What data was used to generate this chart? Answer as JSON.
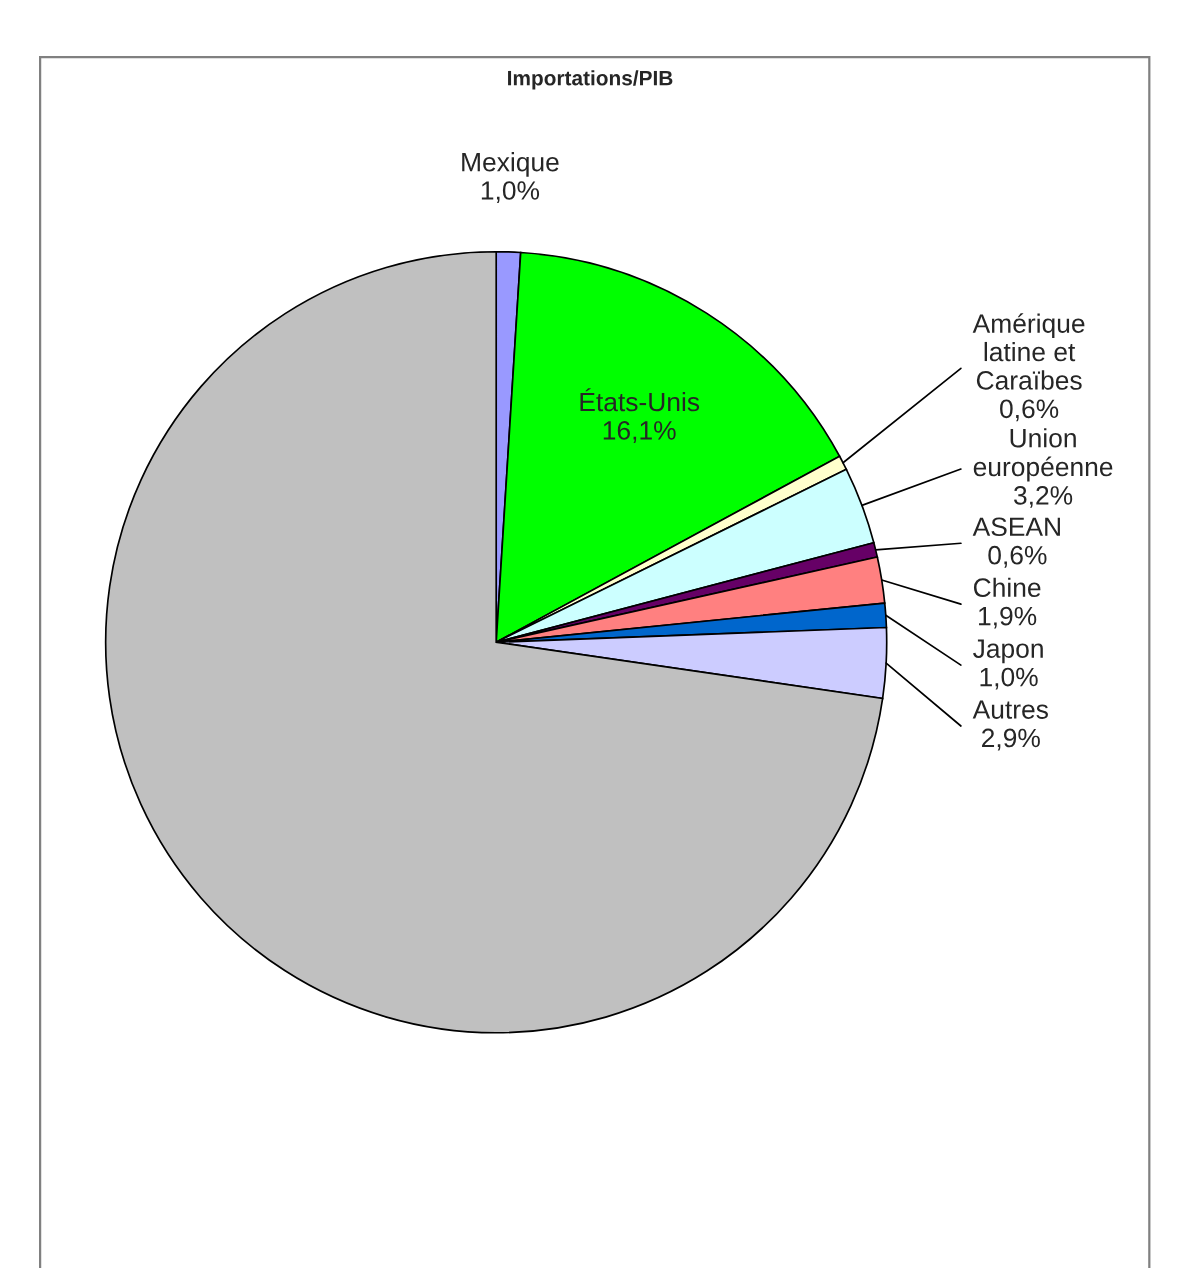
{
  "chart_data": {
    "type": "pie",
    "title": "Importations/PIB",
    "categories": [
      "Mexique",
      "États-Unis",
      "Amérique\nlatine et\nCaraïbes",
      "Union\neuropéenne",
      "ASEAN",
      "Chine",
      "Japon",
      "Autres",
      null
    ],
    "values": [
      1.0,
      16.1,
      0.6,
      3.2,
      0.6,
      1.9,
      1.0,
      2.9,
      72.7
    ],
    "value_labels": [
      "1,0%",
      "16,1%",
      "0,6%",
      "3,2%",
      "0,6%",
      "1,9%",
      "1,0%",
      "2,9%",
      null
    ],
    "colors": [
      "#9999ff",
      "#00ff00",
      "#ffffcc",
      "#ccffff",
      "#660066",
      "#ff8080",
      "#0066cc",
      "#ccccff",
      "#c0c0c0"
    ]
  }
}
